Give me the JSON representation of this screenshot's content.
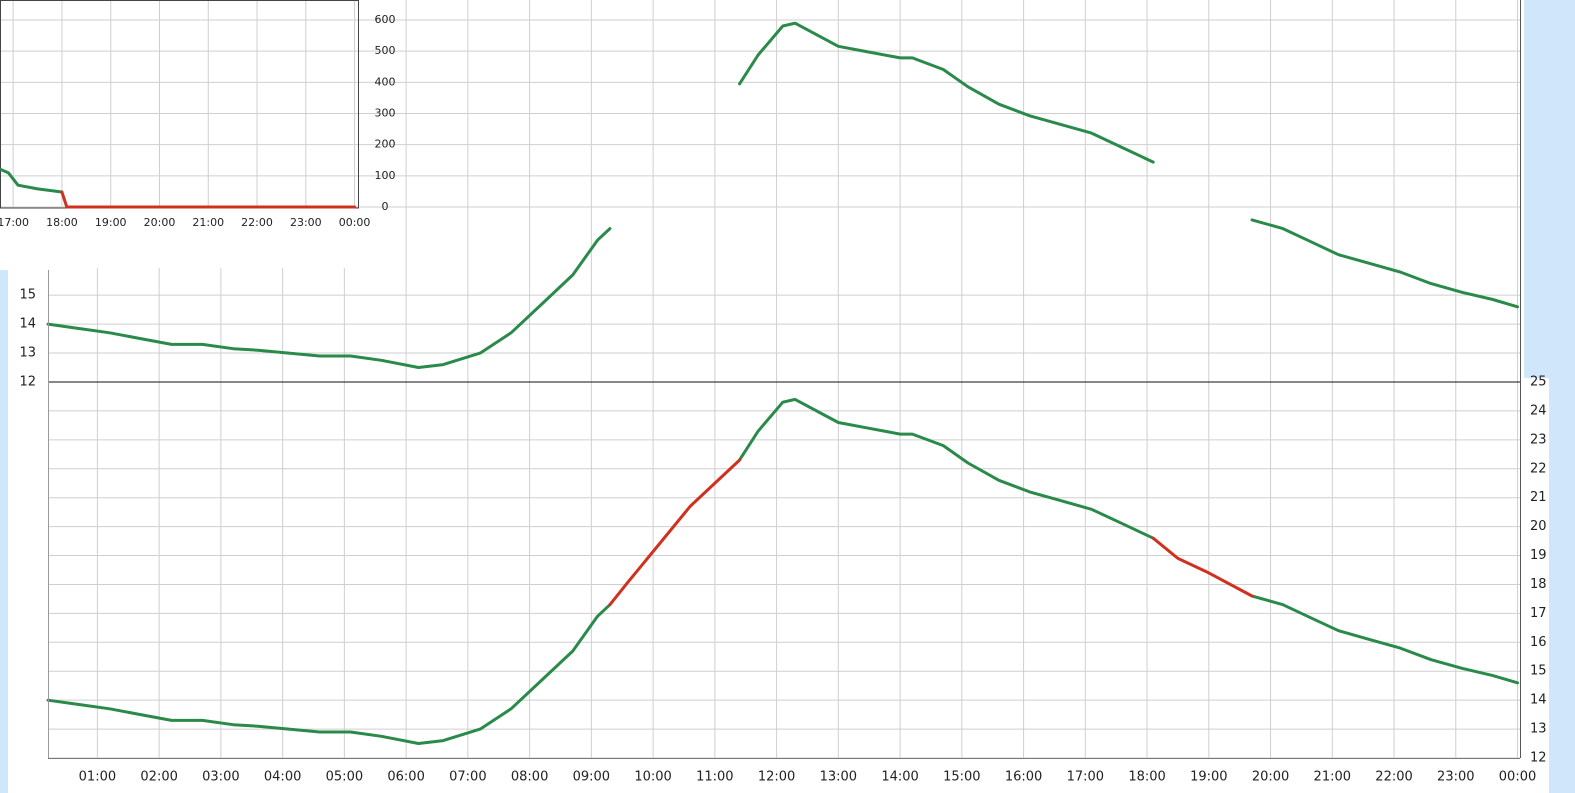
{
  "chart_data": [
    {
      "type": "line",
      "x": [
        16.75,
        16.9,
        17.1,
        17.5,
        18.0,
        18.1,
        24.0
      ],
      "series": [
        {
          "color": "#2a8a4a",
          "values": [
            120,
            110,
            70,
            58,
            48,
            null,
            null
          ]
        },
        {
          "color": "#d0311f",
          "values": [
            null,
            null,
            null,
            null,
            48,
            0,
            0
          ]
        }
      ],
      "xlim": [
        16.73,
        24.07
      ],
      "xticks": [
        {
          "value": 17,
          "label": "17:00"
        },
        {
          "value": 18,
          "label": "18:00"
        },
        {
          "value": 19,
          "label": "19:00"
        },
        {
          "value": 20,
          "label": "20:00"
        },
        {
          "value": 21,
          "label": "21:00"
        },
        {
          "value": 22,
          "label": "22:00"
        },
        {
          "value": 23,
          "label": "23:00"
        },
        {
          "value": 24,
          "label": "00:00"
        }
      ],
      "ylim": [
        0,
        600
      ],
      "yticks": [
        0,
        100,
        200,
        300,
        400,
        500,
        600
      ],
      "grid": true
    },
    {
      "type": "line",
      "x": [
        0.2,
        0.7,
        1.2,
        1.7,
        2.2,
        2.7,
        3.2,
        3.6,
        4.1,
        4.6,
        5.1,
        5.6,
        6.2,
        6.6,
        7.2,
        7.7,
        8.2,
        8.7,
        9.1,
        9.3,
        9.6,
        10.1,
        10.6,
        11.4,
        11.7,
        12.1,
        12.3,
        13.0,
        13.5,
        14.0,
        14.2,
        14.7,
        15.1,
        15.6,
        16.1,
        16.6,
        17.1,
        17.6,
        18.1,
        18.5,
        19.0,
        19.7,
        20.2,
        20.6,
        21.1,
        21.6,
        22.1,
        22.6,
        23.1,
        23.6,
        24.0
      ],
      "series": [
        {
          "color": "#2a8a4a",
          "values": [
            14.0,
            13.85,
            13.7,
            13.5,
            13.3,
            13.3,
            13.15,
            13.1,
            13.0,
            12.9,
            12.9,
            12.75,
            12.5,
            12.6,
            13.0,
            13.7,
            14.7,
            15.7,
            16.9,
            17.3,
            null,
            null,
            null,
            22.3,
            23.3,
            24.3,
            24.4,
            23.6,
            23.4,
            23.2,
            23.2,
            22.8,
            22.2,
            21.6,
            21.2,
            20.9,
            20.6,
            20.1,
            19.6,
            null,
            null,
            17.6,
            17.3,
            16.9,
            16.4,
            16.1,
            15.8,
            15.4,
            15.1,
            14.85,
            14.6
          ]
        }
      ],
      "xlim": [
        0.2,
        24.04
      ],
      "ylim": [
        12,
        25.2
      ],
      "yticks": [
        12,
        13,
        14,
        15
      ],
      "grid": true
    },
    {
      "type": "line",
      "x": [
        0.2,
        0.7,
        1.2,
        1.7,
        2.2,
        2.7,
        3.2,
        3.6,
        4.1,
        4.6,
        5.1,
        5.6,
        6.2,
        6.6,
        7.2,
        7.7,
        8.2,
        8.7,
        9.1,
        9.3,
        9.6,
        10.1,
        10.6,
        11.4,
        11.7,
        12.1,
        12.3,
        13.0,
        13.5,
        14.0,
        14.2,
        14.7,
        15.1,
        15.6,
        16.1,
        16.6,
        17.1,
        17.6,
        18.1,
        18.5,
        19.0,
        19.7,
        20.2,
        20.6,
        21.1,
        21.6,
        22.1,
        22.6,
        23.1,
        23.6,
        24.0
      ],
      "series": [
        {
          "color": "#2a8a4a",
          "values": [
            14.0,
            13.85,
            13.7,
            13.5,
            13.3,
            13.3,
            13.15,
            13.1,
            13.0,
            12.9,
            12.9,
            12.75,
            12.5,
            12.6,
            13.0,
            13.7,
            14.7,
            15.7,
            16.9,
            17.3,
            null,
            null,
            null,
            22.3,
            23.3,
            24.3,
            24.4,
            23.6,
            23.4,
            23.2,
            23.2,
            22.8,
            22.2,
            21.6,
            21.2,
            20.9,
            20.6,
            20.1,
            19.6,
            null,
            null,
            17.6,
            17.3,
            16.9,
            16.4,
            16.1,
            15.8,
            15.4,
            15.1,
            14.85,
            14.6
          ]
        },
        {
          "color": "#d0311f",
          "values": [
            null,
            null,
            null,
            null,
            null,
            null,
            null,
            null,
            null,
            null,
            null,
            null,
            null,
            null,
            null,
            null,
            null,
            null,
            null,
            17.3,
            18.1,
            19.4,
            20.7,
            22.3,
            null,
            null,
            null,
            null,
            null,
            null,
            null,
            null,
            null,
            null,
            null,
            null,
            null,
            null,
            19.6,
            18.9,
            18.4,
            17.6,
            null,
            null,
            null,
            null,
            null,
            null,
            null,
            null,
            null
          ]
        }
      ],
      "xlim": [
        0.2,
        24.04
      ],
      "xticks": [
        {
          "value": 1,
          "label": "01:00"
        },
        {
          "value": 2,
          "label": "02:00"
        },
        {
          "value": 3,
          "label": "03:00"
        },
        {
          "value": 4,
          "label": "04:00"
        },
        {
          "value": 5,
          "label": "05:00"
        },
        {
          "value": 6,
          "label": "06:00"
        },
        {
          "value": 7,
          "label": "07:00"
        },
        {
          "value": 8,
          "label": "08:00"
        },
        {
          "value": 9,
          "label": "09:00"
        },
        {
          "value": 10,
          "label": "10:00"
        },
        {
          "value": 11,
          "label": "11:00"
        },
        {
          "value": 12,
          "label": "12:00"
        },
        {
          "value": 13,
          "label": "13:00"
        },
        {
          "value": 14,
          "label": "14:00"
        },
        {
          "value": 15,
          "label": "15:00"
        },
        {
          "value": 16,
          "label": "16:00"
        },
        {
          "value": 17,
          "label": "17:00"
        },
        {
          "value": 18,
          "label": "18:00"
        },
        {
          "value": 19,
          "label": "19:00"
        },
        {
          "value": 20,
          "label": "20:00"
        },
        {
          "value": 21,
          "label": "21:00"
        },
        {
          "value": 22,
          "label": "22:00"
        },
        {
          "value": 23,
          "label": "23:00"
        },
        {
          "value": 24,
          "label": "00:00"
        }
      ],
      "ylim": [
        12,
        25
      ],
      "yticks": [
        12,
        13,
        14,
        15,
        16,
        17,
        18,
        19,
        20,
        21,
        22,
        23,
        24,
        25
      ],
      "grid": true
    }
  ]
}
